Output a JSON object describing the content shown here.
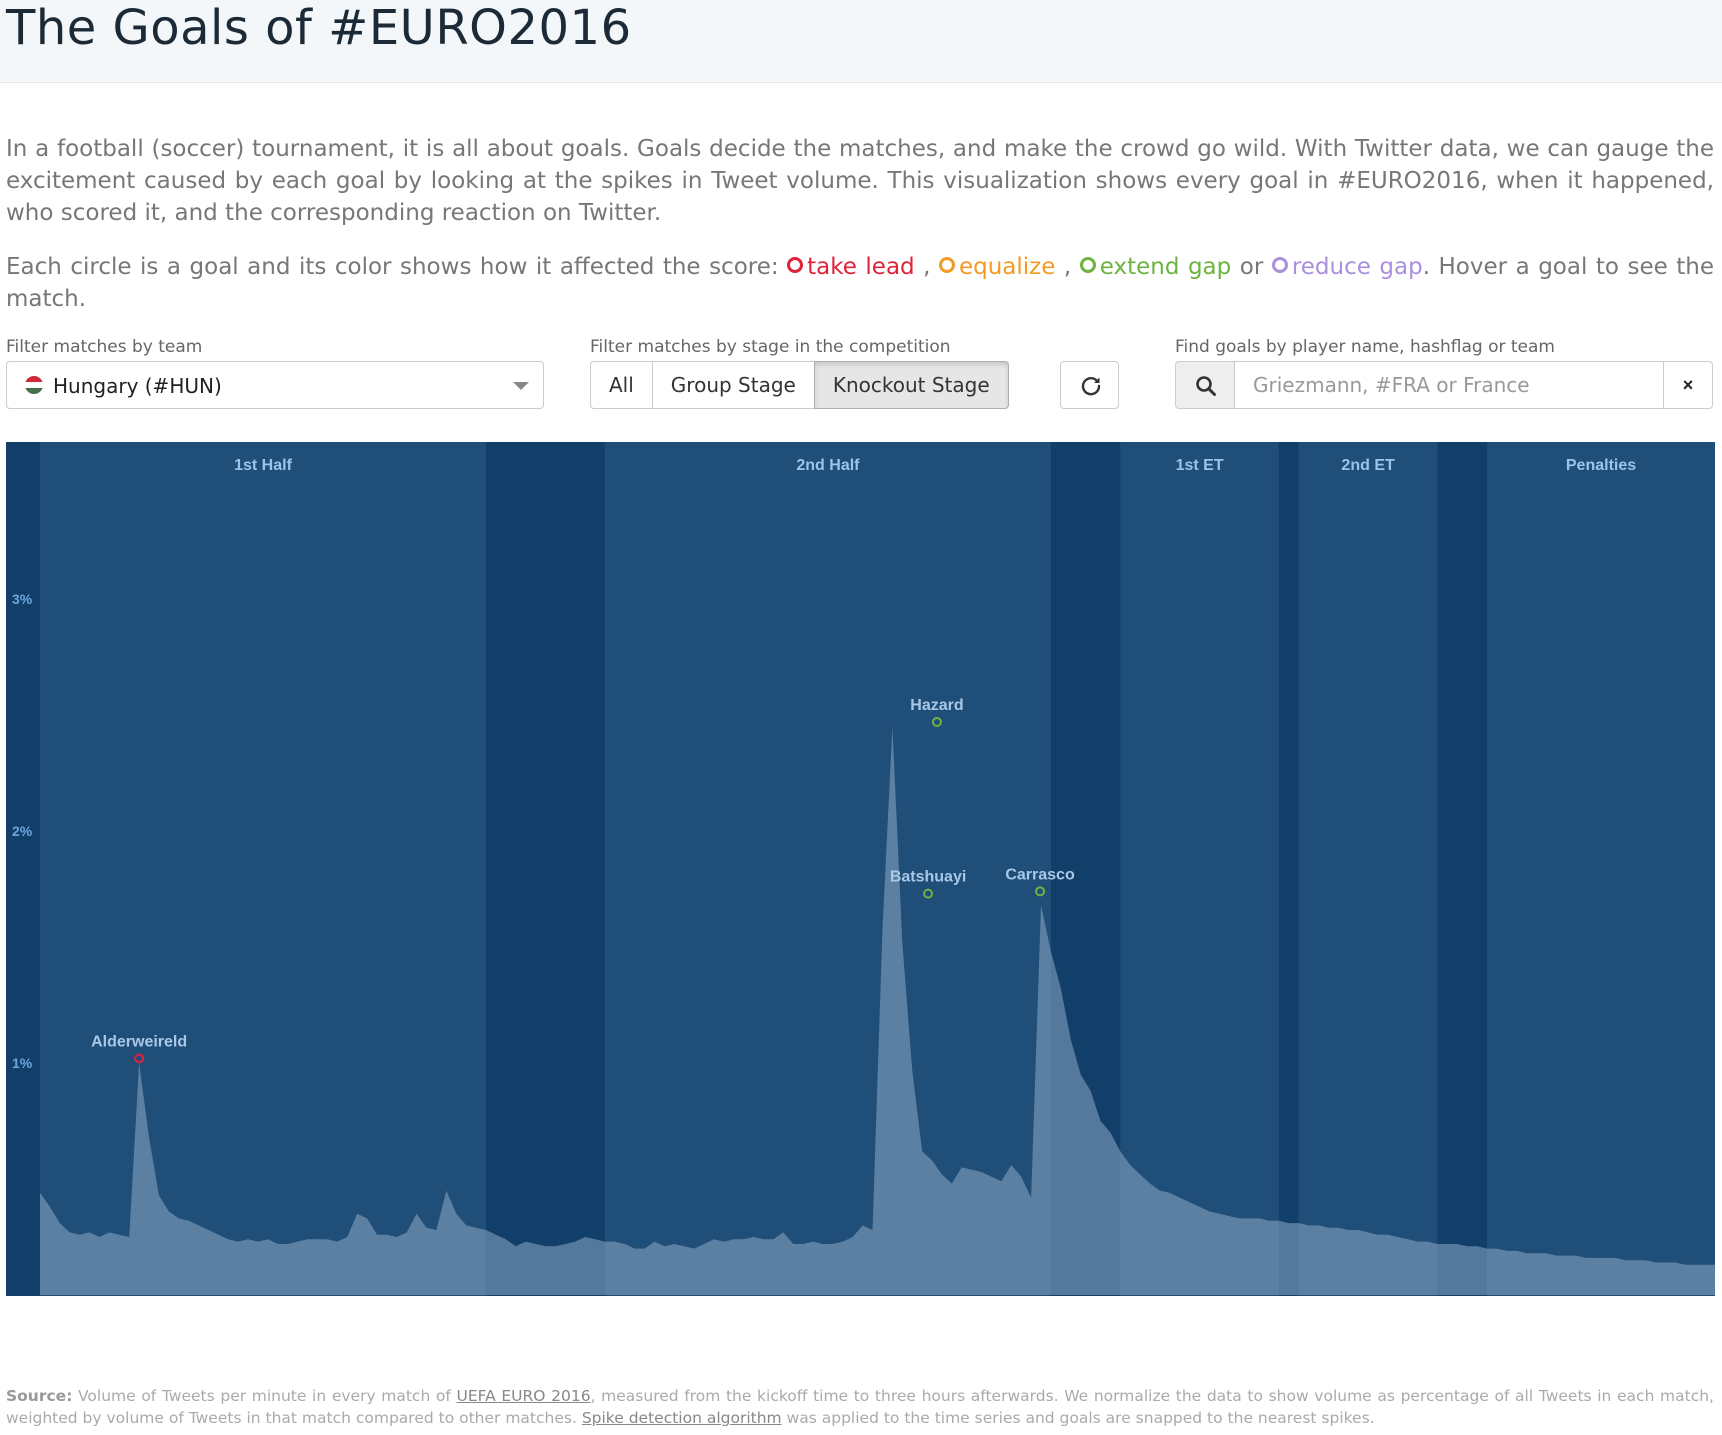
{
  "header": {
    "title": "The Goals of #EURO2016"
  },
  "intro": {
    "paragraph": "In a football (soccer) tournament, it is all about goals. Goals decide the matches, and make the crowd go wild. With Twitter data, we can gauge the excitement caused by each goal by looking at the spikes in Tweet volume. This visualization shows every goal in #EURO2016, when it happened, who scored it, and the corresponding reaction on Twitter.",
    "legend_prefix": "Each circle is a goal and its color shows how it affected the score: ",
    "legend_items": [
      {
        "label": "take lead",
        "color": "#e0233b"
      },
      {
        "label": "equalize",
        "color": "#f39a22"
      },
      {
        "label": "extend gap",
        "color": "#6db33f"
      },
      {
        "label": "reduce gap",
        "color": "#a98fdc"
      }
    ],
    "legend_sep1": " , ",
    "legend_sep2": " , ",
    "legend_or": " or ",
    "legend_suffix": ". Hover a goal to see the match."
  },
  "filters": {
    "team_label": "Filter matches by team",
    "team_value": "Hungary (#HUN)",
    "stage_label": "Filter matches by stage in the competition",
    "stage_options": [
      "All",
      "Group Stage",
      "Knockout Stage"
    ],
    "stage_selected": "Knockout Stage",
    "search_label": "Find goals by player name, hashflag or team",
    "search_placeholder": "Griezmann, #FRA or France",
    "clear_label": "×"
  },
  "chart_data": {
    "type": "area",
    "x_unit": "minute since kickoff",
    "y_ticks": [
      "1%",
      "2%",
      "3%"
    ],
    "ylim": [
      0,
      3.7
    ],
    "periods": [
      {
        "label": "1st Half",
        "start": 0,
        "end": 45
      },
      {
        "label": "2nd Half",
        "start": 57,
        "end": 102
      },
      {
        "label": "1st ET",
        "start": 109,
        "end": 125
      },
      {
        "label": "2nd ET",
        "start": 127,
        "end": 141
      },
      {
        "label": "Penalties",
        "start": 146,
        "end": 169
      }
    ],
    "goals": [
      {
        "player": "Alderweireld",
        "minute": 10,
        "value": 1.02,
        "type": "take lead",
        "color": "#e0233b"
      },
      {
        "player": "Hazard",
        "minute": 90.5,
        "value": 2.47,
        "type": "extend gap",
        "color": "#6db33f"
      },
      {
        "player": "Batshuayi",
        "minute": 89.6,
        "value": 1.73,
        "type": "extend gap",
        "color": "#6db33f"
      },
      {
        "player": "Carrasco",
        "minute": 100.9,
        "value": 1.74,
        "type": "extend gap",
        "color": "#6db33f"
      }
    ],
    "series": [
      {
        "x": [
          0,
          1,
          2,
          3,
          4,
          5,
          6,
          7,
          8,
          9,
          10,
          11,
          12,
          13,
          14,
          15,
          16,
          17,
          18,
          19,
          20,
          21,
          22,
          23,
          24,
          25,
          26,
          27,
          28,
          29,
          30,
          31,
          32,
          33,
          34,
          35,
          36,
          37,
          38,
          39,
          40,
          41,
          42,
          43,
          44,
          45,
          46,
          47,
          48,
          49,
          50,
          51,
          52,
          53,
          54,
          55,
          56,
          57,
          58,
          59,
          60,
          61,
          62,
          63,
          64,
          65,
          66,
          67,
          68,
          69,
          70,
          71,
          72,
          73,
          74,
          75,
          76,
          77,
          78,
          79,
          80,
          81,
          82,
          83,
          84,
          85,
          86,
          87,
          88,
          89,
          90,
          91,
          92,
          93,
          94,
          95,
          96,
          97,
          98,
          99,
          100,
          101,
          102,
          103,
          104,
          105,
          106,
          107,
          108,
          109,
          110,
          111,
          112,
          113,
          114,
          115,
          116,
          117,
          118,
          119,
          120,
          121,
          122,
          123,
          124,
          125,
          126,
          127,
          128,
          129,
          130,
          131,
          132,
          133,
          134,
          135,
          136,
          137,
          138,
          139,
          140,
          141,
          142,
          143,
          144,
          145,
          146,
          147,
          148,
          149,
          150,
          151,
          152,
          153,
          154,
          155,
          156,
          157,
          158,
          159,
          160,
          161,
          162,
          163,
          164,
          165,
          166,
          167,
          168,
          169
        ],
        "y": [
          0.44,
          0.38,
          0.31,
          0.27,
          0.26,
          0.27,
          0.25,
          0.27,
          0.26,
          0.25,
          1.0,
          0.68,
          0.43,
          0.36,
          0.33,
          0.32,
          0.3,
          0.28,
          0.26,
          0.24,
          0.23,
          0.24,
          0.23,
          0.24,
          0.22,
          0.22,
          0.23,
          0.24,
          0.24,
          0.24,
          0.23,
          0.25,
          0.35,
          0.33,
          0.26,
          0.26,
          0.25,
          0.27,
          0.35,
          0.29,
          0.28,
          0.45,
          0.35,
          0.3,
          0.29,
          0.28,
          0.26,
          0.24,
          0.21,
          0.23,
          0.22,
          0.21,
          0.21,
          0.22,
          0.23,
          0.25,
          0.24,
          0.23,
          0.23,
          0.22,
          0.2,
          0.2,
          0.23,
          0.21,
          0.22,
          0.21,
          0.2,
          0.22,
          0.24,
          0.23,
          0.24,
          0.24,
          0.25,
          0.24,
          0.24,
          0.27,
          0.22,
          0.22,
          0.23,
          0.22,
          0.22,
          0.23,
          0.25,
          0.3,
          0.28,
          1.58,
          2.45,
          1.52,
          0.97,
          0.62,
          0.58,
          0.52,
          0.48,
          0.55,
          0.54,
          0.53,
          0.51,
          0.49,
          0.56,
          0.51,
          0.42,
          1.68,
          1.48,
          1.32,
          1.1,
          0.95,
          0.88,
          0.75,
          0.7,
          0.62,
          0.56,
          0.52,
          0.48,
          0.45,
          0.44,
          0.42,
          0.4,
          0.38,
          0.36,
          0.35,
          0.34,
          0.33,
          0.33,
          0.33,
          0.32,
          0.32,
          0.31,
          0.31,
          0.3,
          0.3,
          0.29,
          0.29,
          0.28,
          0.28,
          0.27,
          0.26,
          0.26,
          0.25,
          0.24,
          0.23,
          0.23,
          0.22,
          0.22,
          0.22,
          0.21,
          0.21,
          0.2,
          0.2,
          0.19,
          0.19,
          0.18,
          0.18,
          0.18,
          0.17,
          0.17,
          0.17,
          0.16,
          0.16,
          0.16,
          0.16,
          0.15,
          0.15,
          0.15,
          0.14,
          0.14,
          0.14,
          0.13,
          0.13,
          0.13,
          0.13
        ]
      }
    ]
  },
  "footer": {
    "source_label": "Source:",
    "text1": " Volume of Tweets per minute in every match of ",
    "link1": "UEFA EURO 2016",
    "text2": ", measured from the kickoff time to three hours afterwards. We normalize the data to show volume as percentage of all Tweets in each match, weighted by volume of Tweets in that match compared to other matches. ",
    "link2": "Spike detection algorithm",
    "text3": " was applied to the time series and goals are snapped to the nearest spikes."
  }
}
